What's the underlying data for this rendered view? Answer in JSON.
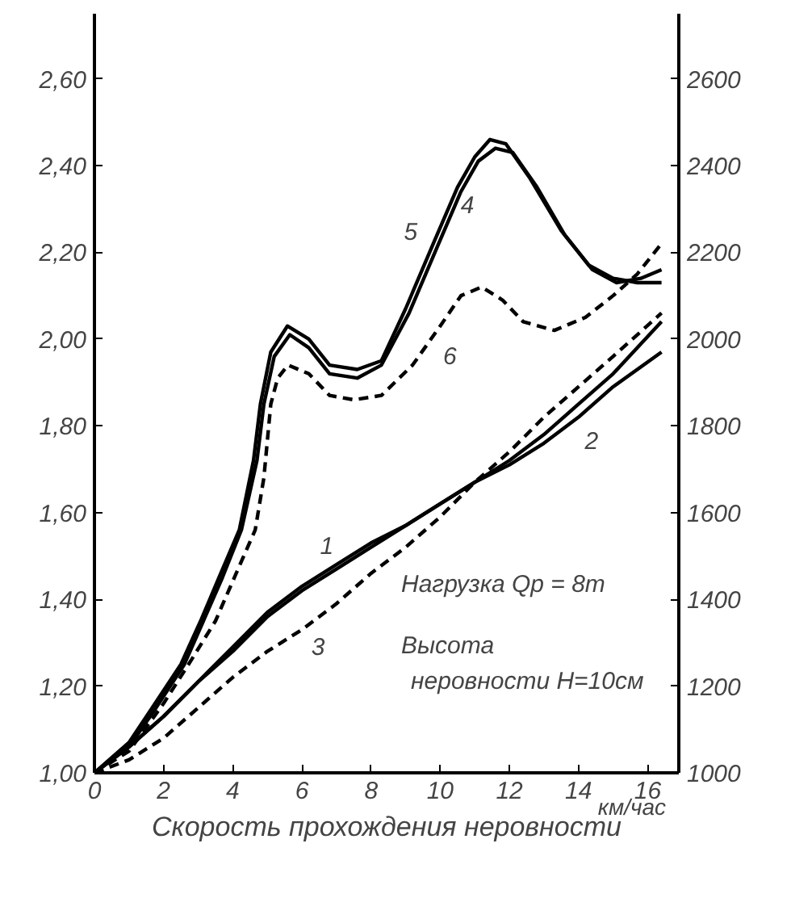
{
  "chart_data": {
    "type": "line",
    "xlabel": "Скорость прохождения неровности",
    "x": [
      0,
      1,
      2,
      3,
      4,
      5,
      6,
      7,
      8,
      9,
      10,
      11,
      12,
      13,
      14,
      15,
      16.4
    ],
    "xlim": [
      0,
      16.9
    ],
    "xticks": [
      0,
      2,
      4,
      6,
      8,
      10,
      12,
      14,
      16
    ],
    "ylim": [
      1.0,
      2.75
    ],
    "yticks": [
      {
        "value": 1.0,
        "label": "1,00"
      },
      {
        "value": 1.2,
        "label": "1,20"
      },
      {
        "value": 1.4,
        "label": "1,40"
      },
      {
        "value": 1.6,
        "label": "1,60"
      },
      {
        "value": 1.8,
        "label": "1,80"
      },
      {
        "value": 2.0,
        "label": "2,00"
      },
      {
        "value": 2.2,
        "label": "2,20"
      },
      {
        "value": 2.4,
        "label": "2,40"
      },
      {
        "value": 2.6,
        "label": "2,60"
      }
    ],
    "y2lim": [
      1000,
      2750
    ],
    "y2ticks": [
      1000,
      1200,
      1400,
      1600,
      1800,
      2000,
      2200,
      2400,
      2600
    ],
    "grid": false,
    "legend": false,
    "series": [
      {
        "name": "1",
        "color": "#000000",
        "line_style": "solid",
        "values": [
          1.0,
          1.06,
          1.13,
          1.21,
          1.29,
          1.37,
          1.43,
          1.48,
          1.53,
          1.57,
          1.62,
          1.67,
          1.72,
          1.78,
          1.85,
          1.92,
          2.04
        ]
      },
      {
        "name": "2",
        "color": "#000000",
        "line_style": "solid",
        "values": [
          1.0,
          1.06,
          1.13,
          1.21,
          1.28,
          1.36,
          1.42,
          1.47,
          1.52,
          1.57,
          1.62,
          1.67,
          1.71,
          1.76,
          1.82,
          1.89,
          1.97
        ]
      },
      {
        "name": "3",
        "color": "#000000",
        "line_style": "dashed",
        "values": [
          1.0,
          1.03,
          1.08,
          1.15,
          1.22,
          1.28,
          1.33,
          1.39,
          1.46,
          1.52,
          1.59,
          1.67,
          1.74,
          1.82,
          1.89,
          1.96,
          2.06
        ]
      },
      {
        "name": "4",
        "color": "#000000",
        "line_style": "solid",
        "x": [
          0,
          1,
          1.7,
          2.6,
          3.15,
          3.7,
          4.25,
          4.7,
          4.9,
          5.2,
          5.65,
          6.2,
          6.8,
          7.6,
          8.3,
          9.1,
          9.9,
          10.6,
          11.1,
          11.6,
          12.1,
          12.8,
          13.6,
          14.4,
          15.1,
          15.8,
          16.4
        ],
        "values": [
          1.0,
          1.06,
          1.14,
          1.25,
          1.35,
          1.45,
          1.56,
          1.72,
          1.85,
          1.96,
          2.01,
          1.98,
          1.92,
          1.91,
          1.94,
          2.06,
          2.21,
          2.34,
          2.41,
          2.44,
          2.43,
          2.35,
          2.24,
          2.16,
          2.13,
          2.14,
          2.16
        ]
      },
      {
        "name": "5",
        "color": "#000000",
        "line_style": "solid",
        "x": [
          0,
          1,
          1.67,
          2.5,
          3.07,
          3.6,
          4.19,
          4.6,
          4.8,
          5.1,
          5.58,
          6.2,
          6.8,
          7.6,
          8.3,
          9,
          9.8,
          10.5,
          11.0,
          11.44,
          11.9,
          12.6,
          13.5,
          14.3,
          15.0,
          15.7,
          16.4
        ],
        "values": [
          1.0,
          1.07,
          1.15,
          1.25,
          1.35,
          1.45,
          1.56,
          1.72,
          1.85,
          1.97,
          2.03,
          2.0,
          1.94,
          1.93,
          1.95,
          2.07,
          2.22,
          2.35,
          2.42,
          2.46,
          2.45,
          2.37,
          2.25,
          2.17,
          2.14,
          2.13,
          2.13
        ]
      },
      {
        "name": "6",
        "color": "#000000",
        "line_style": "dashed",
        "x": [
          0,
          1,
          2,
          2.8,
          3.5,
          4.1,
          4.65,
          4.9,
          5.1,
          5.3,
          5.6,
          6.2,
          6.8,
          7.5,
          8.3,
          9.2,
          10.0,
          10.6,
          11.2,
          11.8,
          12.4,
          13.3,
          14.2,
          15.0,
          15.7,
          16.4
        ],
        "values": [
          1.0,
          1.05,
          1.16,
          1.26,
          1.35,
          1.46,
          1.56,
          1.68,
          1.85,
          1.91,
          1.94,
          1.92,
          1.87,
          1.86,
          1.87,
          1.94,
          2.03,
          2.1,
          2.12,
          2.09,
          2.04,
          2.02,
          2.05,
          2.1,
          2.15,
          2.22
        ]
      }
    ],
    "annotations": [
      "км/час",
      "Нагрузка Qр = 8т",
      "Высота",
      "неровности H=10см"
    ]
  }
}
